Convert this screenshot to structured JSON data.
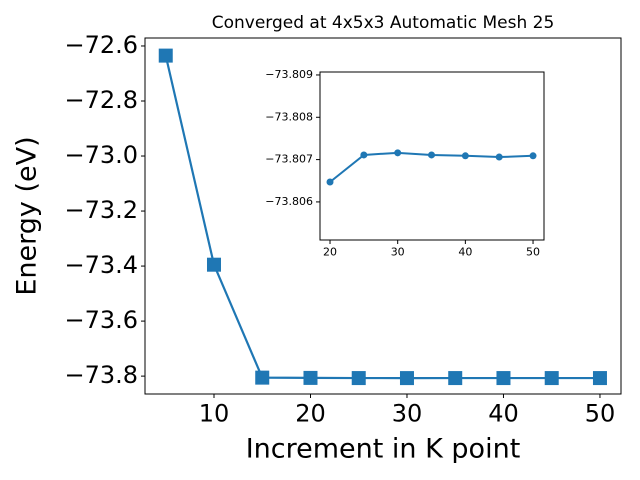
{
  "chart_data": [
    {
      "type": "line",
      "title": "Converged at 4x5x3 Automatic Mesh 25",
      "xlabel": "Increment in K point",
      "ylabel": "Energy (eV)",
      "x": [
        5,
        10,
        15,
        20,
        25,
        30,
        35,
        40,
        45,
        50
      ],
      "values": [
        -72.635,
        -73.395,
        -73.8055,
        -73.8065,
        -73.8071,
        -73.8072,
        -73.8071,
        -73.8071,
        -73.8071,
        -73.8071
      ],
      "color": "#1f77b4",
      "marker": "square",
      "xlim": [
        2.85,
        52.18
      ],
      "ylim": [
        -73.865,
        -72.571
      ],
      "xticks": [
        10,
        20,
        30,
        40,
        50
      ],
      "yticks": [
        {
          "value": -73.8,
          "label": "−73.8"
        },
        {
          "value": -73.6,
          "label": "−73.6"
        },
        {
          "value": -73.4,
          "label": "−73.4"
        },
        {
          "value": -73.2,
          "label": "−73.2"
        },
        {
          "value": -73.0,
          "label": "−73.0"
        },
        {
          "value": -72.8,
          "label": "−72.8"
        },
        {
          "value": -72.6,
          "label": "−72.6"
        }
      ]
    },
    {
      "type": "line",
      "x": [
        20,
        25,
        30,
        35,
        40,
        45,
        50
      ],
      "values": [
        -73.80647,
        -73.80711,
        -73.80716,
        -73.80711,
        -73.80709,
        -73.80706,
        -73.80709
      ],
      "color": "#1f77b4",
      "marker": "circle",
      "xlim": [
        18.52,
        51.62
      ],
      "ylim": [
        -73.8051,
        -73.80907
      ],
      "xticks": [
        20,
        30,
        40,
        50
      ],
      "yticks": [
        {
          "value": -73.806,
          "label": "−73.806"
        },
        {
          "value": -73.807,
          "label": "−73.807"
        },
        {
          "value": -73.808,
          "label": "−73.808"
        },
        {
          "value": -73.809,
          "label": "−73.809"
        }
      ]
    }
  ]
}
